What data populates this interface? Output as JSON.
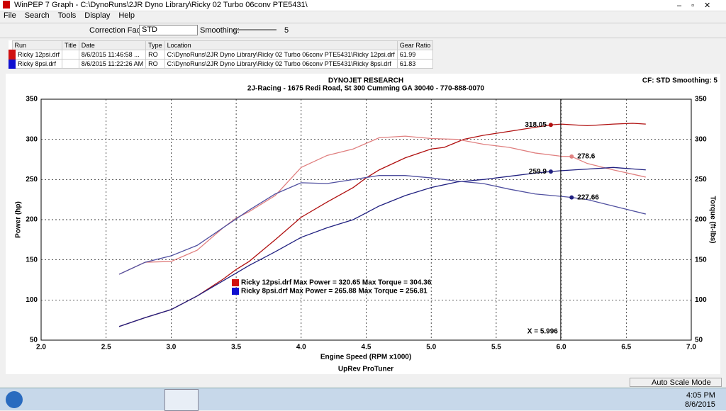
{
  "window": {
    "title": "WinPEP 7    Graph - C:\\DynoRuns\\2JR Dyno Library\\Ricky 02 Turbo 06conv PTE5431\\",
    "menu": [
      "File",
      "Search",
      "Tools",
      "Display",
      "Help"
    ],
    "toolbar": {
      "correction_label": "Correction Factor:",
      "correction_value": "STD",
      "smoothing_label": "Smoothing:",
      "smoothing_value": "5"
    },
    "runs": {
      "headers": [
        "Run",
        "Title",
        "Date",
        "Type",
        "Location",
        "Gear Ratio"
      ],
      "rows": [
        [
          "Ricky 12psi.drf",
          "",
          "8/6/2015 11:46:58 ...",
          "RO",
          "C:\\DynoRuns\\2JR Dyno Library\\Ricky 02 Turbo 06conv PTE5431\\Ricky 12psi.drf",
          "61.99"
        ],
        [
          "Ricky 8psi.drf",
          "",
          "8/6/2015 11:22:26 AM",
          "RO",
          "C:\\DynoRuns\\2JR Dyno Library\\Ricky 02 Turbo 06conv PTE5431\\Ricky 8psi.drf",
          "61.83"
        ]
      ]
    },
    "status": "Auto Scale Mode",
    "clock": {
      "time": "4:05 PM",
      "date": "8/6/2015"
    }
  },
  "chart_data": {
    "type": "line",
    "title": "DYNOJET RESEARCH",
    "subtitle": "2J-Racing - 1675 Redi Road, St 300 Cumming GA 30040 - 770-888-0070",
    "corner_note": "CF: STD  Smoothing: 5",
    "xlabel": "Engine Speed (RPM x1000)",
    "footer": "UpRev ProTuner",
    "ylabel": "Power (hp)",
    "y2label": "Torque (ft-lbs)",
    "xlim": [
      2.0,
      7.0
    ],
    "xticks": [
      {
        "value": 2,
        "label": "2.0"
      },
      {
        "value": 2.5,
        "label": "2.5"
      },
      {
        "value": 3,
        "label": "3.0"
      },
      {
        "value": 3.5,
        "label": "3.5"
      },
      {
        "value": 4,
        "label": "4.0"
      },
      {
        "value": 4.5,
        "label": "4.5"
      },
      {
        "value": 5,
        "label": "5.0"
      },
      {
        "value": 5.5,
        "label": "5.5"
      },
      {
        "value": 6,
        "label": "6.0"
      },
      {
        "value": 6.5,
        "label": "6.5"
      },
      {
        "value": 7,
        "label": "7.0"
      }
    ],
    "ylim": [
      50,
      350
    ],
    "yticks": [
      50,
      100,
      150,
      200,
      250,
      300,
      350
    ],
    "y2lim": [
      50,
      350
    ],
    "y2ticks": [
      50,
      100,
      150,
      200,
      250,
      300,
      350
    ],
    "grid": true,
    "series": [
      {
        "color": "#b01010",
        "x": [
          2.6,
          2.8,
          3.0,
          3.2,
          3.4,
          3.5,
          3.6,
          3.8,
          4.0,
          4.2,
          4.4,
          4.5,
          4.6,
          4.8,
          5.0,
          5.1,
          5.25,
          5.4,
          5.6,
          5.8,
          5.92,
          6.0,
          6.2,
          6.4,
          6.55,
          6.65
        ],
        "values": [
          67,
          78,
          88,
          105,
          126,
          138,
          148,
          175,
          203,
          222,
          240,
          252,
          262,
          277,
          288,
          290,
          300,
          305,
          310,
          315,
          318.05,
          319,
          317,
          319,
          320,
          319
        ]
      },
      {
        "color": "#e08080",
        "axis": "y2",
        "x": [
          2.6,
          2.8,
          3.0,
          3.2,
          3.4,
          3.5,
          3.6,
          3.8,
          4.0,
          4.2,
          4.4,
          4.6,
          4.8,
          5.0,
          5.2,
          5.4,
          5.6,
          5.8,
          6.0,
          6.08,
          6.2,
          6.4,
          6.65
        ],
        "values": [
          132,
          147,
          148,
          162,
          190,
          202,
          210,
          230,
          265,
          280,
          288,
          302,
          304,
          301,
          300,
          294,
          290,
          283,
          279,
          278.6,
          270,
          262,
          253
        ]
      },
      {
        "color": "#202080",
        "x": [
          2.6,
          2.8,
          3.0,
          3.2,
          3.4,
          3.6,
          3.8,
          4.0,
          4.2,
          4.4,
          4.6,
          4.8,
          5.0,
          5.2,
          5.4,
          5.6,
          5.8,
          5.92,
          6.0,
          6.2,
          6.4,
          6.65
        ],
        "values": [
          67,
          78,
          88,
          105,
          124,
          143,
          160,
          178,
          190,
          200,
          217,
          230,
          240,
          247,
          250,
          254,
          258,
          259.9,
          261,
          263,
          265,
          262
        ]
      },
      {
        "color": "#5050a0",
        "axis": "y2",
        "x": [
          2.6,
          2.8,
          3.0,
          3.2,
          3.4,
          3.6,
          3.8,
          4.0,
          4.2,
          4.4,
          4.6,
          4.8,
          5.0,
          5.2,
          5.4,
          5.6,
          5.8,
          6.0,
          6.08,
          6.2,
          6.4,
          6.65
        ],
        "values": [
          132,
          147,
          155,
          168,
          190,
          212,
          232,
          246,
          245,
          250,
          255,
          255,
          252,
          248,
          245,
          238,
          232,
          229,
          227.66,
          225,
          217,
          207
        ]
      }
    ],
    "point_labels": [
      {
        "x": 5.92,
        "value": 318.05,
        "color": "#b01010"
      },
      {
        "x": 6.08,
        "value": 278.6,
        "color": "#e08080"
      },
      {
        "x": 5.92,
        "value": 259.9,
        "color": "#202080"
      },
      {
        "x": 6.08,
        "value": 227.66,
        "color": "#202080"
      }
    ],
    "cursor": {
      "x": 5.996,
      "label": "X = 5.996"
    },
    "legend": [
      {
        "color": "#d01010",
        "text": "Ricky 12psi.drf Max Power = 320.65 Max Torque = 304.36"
      },
      {
        "color": "#1010d0",
        "text": "Ricky 8psi.drf Max Power = 265.88 Max Torque = 256.81"
      }
    ]
  }
}
